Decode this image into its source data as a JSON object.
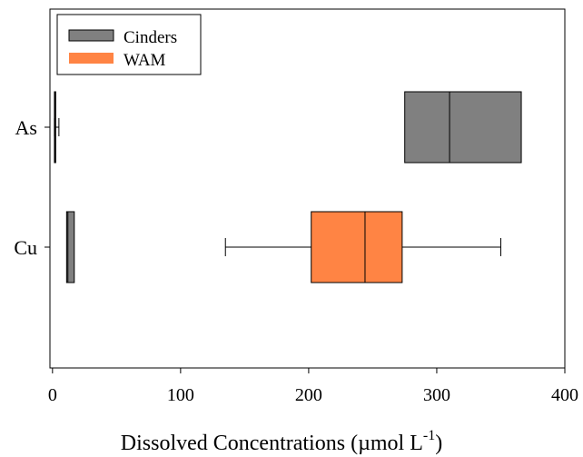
{
  "chart_data": {
    "type": "boxplot",
    "orientation": "horizontal",
    "categories": [
      "As",
      "Cu"
    ],
    "xlabel": "Dissolved Concentrations (",
    "xlabel_unit": "µmol L",
    "xlabel_sup": "-1",
    "xlabel_close": ")",
    "xlim": [
      -2,
      400
    ],
    "xticks": [
      0,
      100,
      200,
      300,
      400
    ],
    "xtick_labels": [
      "0",
      "100",
      "200",
      "300",
      "400"
    ],
    "grid": false,
    "legend_position": "top-left",
    "series": [
      {
        "name": "Cinders",
        "color": "#808080",
        "boxes": [
          {
            "category": "As",
            "q1": 275,
            "median": 310,
            "q3": 366
          },
          {
            "category": "Cu",
            "q1": 11,
            "median": 12,
            "q3": 17
          }
        ]
      },
      {
        "name": "WAM",
        "color": "#ff8444",
        "boxes": [
          {
            "category": "As",
            "whisker_low": 1.5,
            "q1": 1.5,
            "median": 2,
            "q3": 2.5,
            "whisker_high": 5
          },
          {
            "category": "Cu",
            "whisker_low": 135,
            "q1": 202,
            "median": 244,
            "q3": 273,
            "whisker_high": 350
          }
        ]
      }
    ]
  }
}
